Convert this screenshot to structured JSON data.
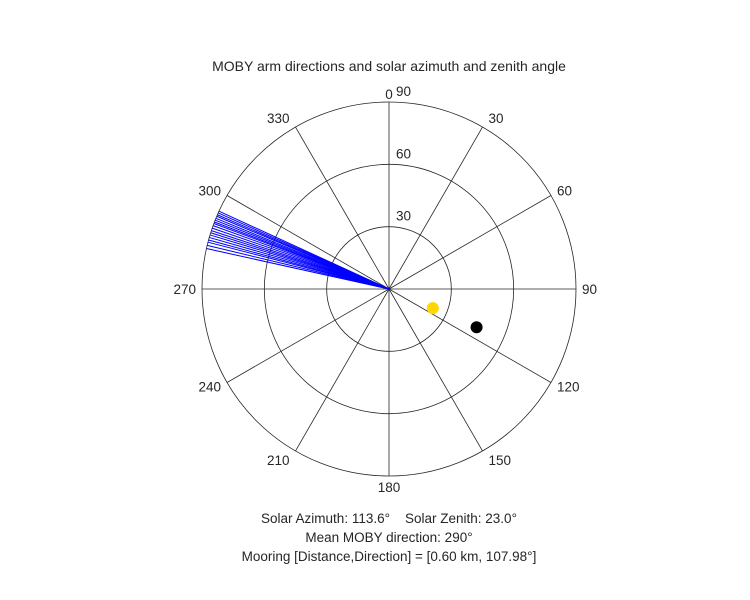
{
  "chart_data": {
    "type": "polar",
    "title": "MOBY arm directions and solar azimuth and zenith angle",
    "theta_ticks": [
      "0",
      "30",
      "60",
      "90",
      "120",
      "150",
      "180",
      "210",
      "240",
      "270",
      "300",
      "330"
    ],
    "theta_tick_values": [
      0,
      30,
      60,
      90,
      120,
      150,
      180,
      210,
      240,
      270,
      300,
      330
    ],
    "r_ticks": [
      "30",
      "60",
      "90"
    ],
    "r_tick_values": [
      30,
      60,
      90
    ],
    "r_max": 90,
    "theta_zero": "top",
    "theta_direction": "clockwise",
    "grid": true,
    "series": [
      {
        "type": "rays",
        "color": "#0000ff",
        "r": 90,
        "angles_deg": [
          282.5,
          283.5,
          284.5,
          285.2,
          286.0,
          286.8,
          287.5,
          288.2,
          289.0,
          289.8,
          290.5,
          291.0,
          291.6,
          292.2,
          292.9,
          293.4,
          294.0,
          294.6
        ]
      },
      {
        "type": "point",
        "color": "#000000",
        "theta_deg": 113.6,
        "r": 46
      },
      {
        "type": "point",
        "color": "#ffd700",
        "theta_deg": 113.6,
        "r": 23.0
      }
    ],
    "annotations": {
      "line1": "Solar Azimuth: 113.6°    Solar Zenith: 23.0°",
      "line2": "Mean MOBY direction: 290°",
      "line3": "Mooring [Distance,Direction] = [0.60 km, 107.98°]"
    }
  }
}
